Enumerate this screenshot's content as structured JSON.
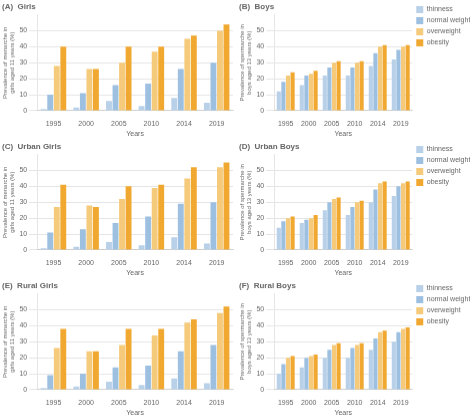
{
  "chart_data": [
    {
      "type": "bar",
      "title": "(A)  Girls",
      "x_label": "Years",
      "y_label": "Prevalence of menarche in girls aged 11 years (%)",
      "categories": [
        "1995",
        "2000",
        "2005",
        "2010",
        "2014",
        "2019"
      ],
      "series": [
        {
          "name": "thinness",
          "color": "#b8d0e8",
          "values": [
            1,
            2,
            6,
            3,
            8,
            5
          ]
        },
        {
          "name": "normal weight",
          "color": "#9dbfe0",
          "values": [
            10,
            11,
            16,
            17,
            26,
            30
          ]
        },
        {
          "name": "overweight",
          "color": "#f5ca7a",
          "values": [
            28,
            26,
            30,
            37,
            45,
            50
          ]
        },
        {
          "name": "obesity",
          "color": "#f0a830",
          "values": [
            40,
            26,
            40,
            40,
            47,
            54
          ]
        }
      ],
      "ylim": [
        0,
        60
      ],
      "yticks": [
        0,
        10,
        20,
        30,
        40,
        50
      ],
      "grid": true
    },
    {
      "type": "bar",
      "title": "(B)  Boys",
      "x_label": "Years",
      "y_label": "Prevalence of spermarche in boys aged 13 years (%)",
      "categories": [
        "1995",
        "2000",
        "2005",
        "2010",
        "2014",
        "2019"
      ],
      "series": [
        {
          "name": "thinness",
          "color": "#b8d0e8",
          "values": [
            12,
            16,
            22,
            22,
            28,
            32
          ]
        },
        {
          "name": "normal weight",
          "color": "#9dbfe0",
          "values": [
            18,
            22,
            27,
            27,
            36,
            38
          ]
        },
        {
          "name": "overweight",
          "color": "#f5ca7a",
          "values": [
            22,
            23,
            30,
            30,
            40,
            40
          ]
        },
        {
          "name": "obesity",
          "color": "#f0a830",
          "values": [
            24,
            25,
            31,
            31,
            41,
            41
          ]
        }
      ],
      "ylim": [
        0,
        60
      ],
      "yticks": [
        0,
        10,
        20,
        30,
        40,
        50
      ],
      "grid": true,
      "legend": "right"
    },
    {
      "type": "bar",
      "title": "(C)  Urban Girls",
      "x_label": "Years",
      "y_label": "Prevalence of menarche in girls aged 11 years (%)",
      "categories": [
        "1995",
        "2000",
        "2005",
        "2010",
        "2014",
        "2019"
      ],
      "series": [
        {
          "name": "thinness",
          "color": "#b8d0e8",
          "values": [
            1,
            2,
            5,
            3,
            8,
            4
          ]
        },
        {
          "name": "normal weight",
          "color": "#9dbfe0",
          "values": [
            11,
            13,
            17,
            21,
            29,
            30
          ]
        },
        {
          "name": "overweight",
          "color": "#f5ca7a",
          "values": [
            27,
            28,
            32,
            39,
            45,
            52
          ]
        },
        {
          "name": "obesity",
          "color": "#f0a830",
          "values": [
            41,
            27,
            40,
            41,
            52,
            55
          ]
        }
      ],
      "ylim": [
        0,
        60
      ],
      "yticks": [
        0,
        10,
        20,
        30,
        40,
        50
      ],
      "grid": true
    },
    {
      "type": "bar",
      "title": "(D)  Urban Boys",
      "x_label": "Years",
      "y_label": "Prevalence of spermarche in boys aged 13 years (%)",
      "categories": [
        "1995",
        "2000",
        "2005",
        "2010",
        "2014",
        "2019"
      ],
      "series": [
        {
          "name": "thinness",
          "color": "#b8d0e8",
          "values": [
            14,
            17,
            25,
            22,
            30,
            34
          ]
        },
        {
          "name": "normal weight",
          "color": "#9dbfe0",
          "values": [
            18,
            19,
            30,
            27,
            38,
            40
          ]
        },
        {
          "name": "overweight",
          "color": "#f5ca7a",
          "values": [
            20,
            20,
            32,
            30,
            42,
            42
          ]
        },
        {
          "name": "obesity",
          "color": "#f0a830",
          "values": [
            21,
            22,
            33,
            31,
            43,
            43
          ]
        }
      ],
      "ylim": [
        0,
        60
      ],
      "yticks": [
        0,
        10,
        20,
        30,
        40,
        50
      ],
      "grid": true,
      "legend": "right"
    },
    {
      "type": "bar",
      "title": "(E)  Rural Girls",
      "x_label": "Years",
      "y_label": "Prevalence of menarche in girls aged 11 years (%)",
      "categories": [
        "1995",
        "2000",
        "2005",
        "2010",
        "2014",
        "2019"
      ],
      "series": [
        {
          "name": "thinness",
          "color": "#b8d0e8",
          "values": [
            1,
            2,
            5,
            3,
            7,
            4
          ]
        },
        {
          "name": "normal weight",
          "color": "#9dbfe0",
          "values": [
            9,
            10,
            14,
            15,
            24,
            28
          ]
        },
        {
          "name": "overweight",
          "color": "#f5ca7a",
          "values": [
            26,
            24,
            28,
            34,
            42,
            48
          ]
        },
        {
          "name": "obesity",
          "color": "#f0a830",
          "values": [
            38,
            24,
            38,
            38,
            44,
            52
          ]
        }
      ],
      "ylim": [
        0,
        60
      ],
      "yticks": [
        0,
        10,
        20,
        30,
        40,
        50
      ],
      "grid": true
    },
    {
      "type": "bar",
      "title": "(F)  Rural Boys",
      "x_label": "Years",
      "y_label": "Prevalence of spermarche in boys aged 13 years (%)",
      "categories": [
        "1995",
        "2000",
        "2005",
        "2010",
        "2014",
        "2019"
      ],
      "series": [
        {
          "name": "thinness",
          "color": "#b8d0e8",
          "values": [
            10,
            14,
            20,
            20,
            25,
            30
          ]
        },
        {
          "name": "normal weight",
          "color": "#9dbfe0",
          "values": [
            16,
            20,
            25,
            26,
            32,
            36
          ]
        },
        {
          "name": "overweight",
          "color": "#f5ca7a",
          "values": [
            20,
            21,
            28,
            28,
            36,
            38
          ]
        },
        {
          "name": "obesity",
          "color": "#f0a830",
          "values": [
            21,
            22,
            29,
            29,
            37,
            39
          ]
        }
      ],
      "ylim": [
        0,
        60
      ],
      "yticks": [
        0,
        10,
        20,
        30,
        40,
        50
      ],
      "grid": true,
      "legend": "right"
    }
  ]
}
